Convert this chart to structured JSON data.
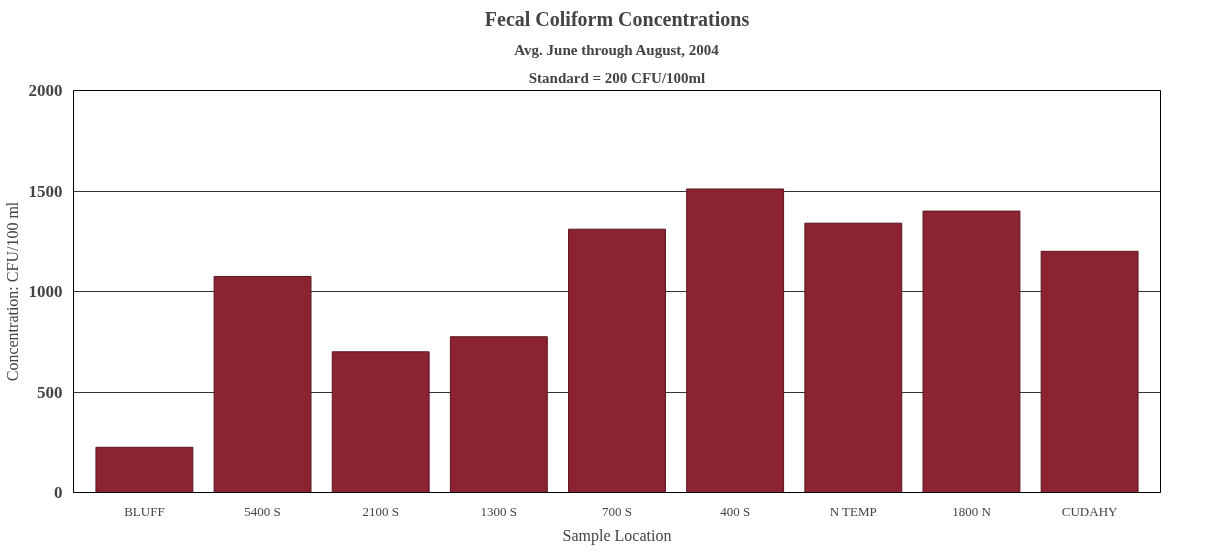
{
  "chart_data": {
    "type": "bar",
    "title": "Fecal Coliform Concentrations",
    "subtitle": "Avg. June through August, 2004",
    "annotations": [
      "Standard = 200 CFU/100ml"
    ],
    "xlabel": "Sample Location",
    "ylabel": "Concentration: CFU/100 ml",
    "categories": [
      "BLUFF",
      "5400 S",
      "2100 S",
      "1300 S",
      "700 S",
      "400 S",
      "N TEMP",
      "1800 N",
      "CUDAHY"
    ],
    "values": [
      225,
      1075,
      700,
      775,
      1310,
      1510,
      1340,
      1400,
      1200
    ],
    "color": "#8b2332",
    "ylim": [
      0,
      2000
    ],
    "yticks": [
      0,
      500,
      1000,
      1500,
      2000
    ],
    "grid": "y"
  }
}
